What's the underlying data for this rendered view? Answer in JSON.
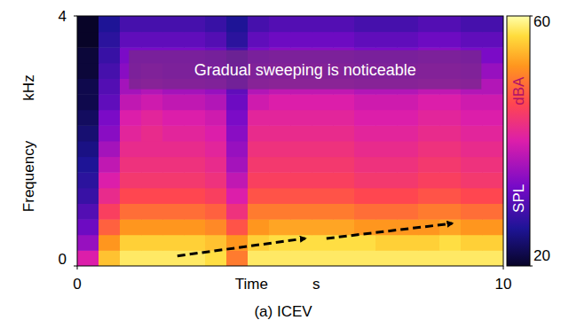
{
  "chart_data": {
    "type": "heatmap",
    "title": "(a)  ICEV",
    "annotation": "Gradual sweeping is noticeable",
    "x_label": "Time",
    "x_unit": "s",
    "y_label": "Frequency",
    "y_unit": "kHz",
    "xlim": [
      0,
      10
    ],
    "xticks": [
      0,
      10
    ],
    "ylim": [
      0,
      4
    ],
    "yticks": [
      0,
      4
    ],
    "x": [
      0.25,
      0.75,
      1.25,
      1.75,
      2.25,
      2.75,
      3.25,
      3.75,
      4.25,
      4.75,
      5.25,
      5.75,
      6.25,
      6.75,
      7.25,
      7.75,
      8.25,
      8.75,
      9.25,
      9.75
    ],
    "y": [
      0.125,
      0.375,
      0.625,
      0.875,
      1.125,
      1.375,
      1.625,
      1.875,
      2.125,
      2.375,
      2.625,
      2.875,
      3.125,
      3.375,
      3.625,
      3.875
    ],
    "values": [
      [
        40,
        55,
        58,
        58,
        58,
        58,
        57,
        50,
        58,
        58,
        58,
        58,
        58,
        58,
        58,
        58,
        58,
        58,
        58,
        58
      ],
      [
        35,
        52,
        56,
        56,
        56,
        56,
        55,
        52,
        56,
        57,
        57,
        57,
        57,
        57,
        56,
        56,
        56,
        57,
        56,
        56
      ],
      [
        32,
        48,
        52,
        52,
        52,
        52,
        51,
        47,
        52,
        53,
        53,
        53,
        53,
        52,
        52,
        52,
        52,
        53,
        52,
        52
      ],
      [
        30,
        45,
        49,
        49,
        49,
        49,
        48,
        43,
        50,
        50,
        50,
        50,
        50,
        49,
        49,
        49,
        50,
        50,
        49,
        49
      ],
      [
        28,
        42,
        46,
        46,
        46,
        46,
        45,
        40,
        47,
        47,
        47,
        47,
        47,
        46,
        46,
        46,
        47,
        47,
        46,
        46
      ],
      [
        27,
        40,
        44,
        44,
        44,
        44,
        43,
        38,
        45,
        45,
        45,
        45,
        45,
        44,
        44,
        44,
        45,
        45,
        44,
        44
      ],
      [
        26,
        38,
        43,
        43,
        43,
        43,
        42,
        36,
        44,
        44,
        44,
        44,
        44,
        43,
        43,
        43,
        44,
        44,
        43,
        43
      ],
      [
        25,
        36,
        42,
        42,
        42,
        42,
        41,
        35,
        43,
        43,
        43,
        43,
        43,
        42,
        42,
        42,
        43,
        43,
        42,
        42
      ],
      [
        24,
        34,
        41,
        42,
        41,
        41,
        40,
        34,
        42,
        42,
        42,
        42,
        42,
        41,
        41,
        41,
        42,
        42,
        41,
        41
      ],
      [
        23,
        33,
        40,
        41,
        40,
        40,
        39,
        33,
        41,
        41,
        41,
        41,
        41,
        40,
        40,
        40,
        41,
        41,
        40,
        40
      ],
      [
        22,
        31,
        38,
        39,
        38,
        38,
        37,
        32,
        39,
        40,
        40,
        40,
        40,
        39,
        39,
        39,
        40,
        40,
        39,
        39
      ],
      [
        22,
        30,
        36,
        37,
        36,
        36,
        35,
        31,
        37,
        38,
        38,
        38,
        38,
        37,
        37,
        37,
        38,
        38,
        37,
        37
      ],
      [
        21,
        29,
        34,
        35,
        34,
        34,
        33,
        30,
        35,
        36,
        36,
        36,
        36,
        35,
        35,
        35,
        36,
        36,
        35,
        35
      ],
      [
        21,
        28,
        33,
        33,
        33,
        33,
        32,
        29,
        33,
        34,
        34,
        34,
        34,
        33,
        33,
        33,
        34,
        34,
        33,
        33
      ],
      [
        20,
        27,
        31,
        31,
        31,
        31,
        30,
        27,
        31,
        32,
        32,
        32,
        32,
        31,
        31,
        31,
        32,
        32,
        31,
        31
      ],
      [
        20,
        26,
        29,
        29,
        29,
        29,
        28,
        26,
        29,
        30,
        30,
        30,
        30,
        29,
        29,
        29,
        30,
        30,
        29,
        29
      ]
    ],
    "colorbar": {
      "label": "SPL",
      "unit": "dBA",
      "range": [
        20,
        60
      ],
      "ticks": [
        20,
        60
      ]
    }
  }
}
